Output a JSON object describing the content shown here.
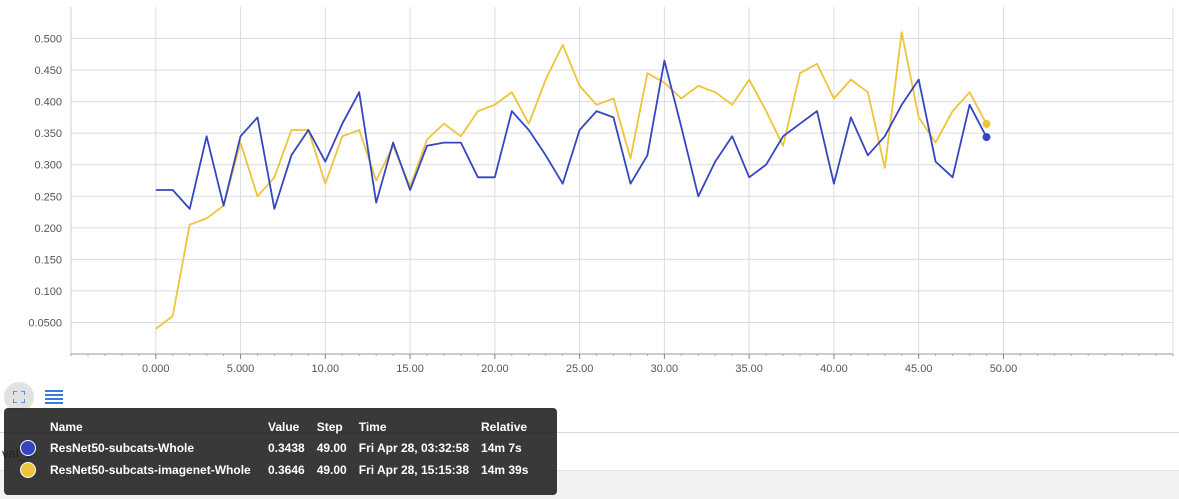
{
  "chart_data": {
    "type": "line",
    "xlim": [
      -5,
      60
    ],
    "ylim": [
      0,
      0.55
    ],
    "grid": true,
    "x_ticks": [
      0,
      5,
      10,
      15,
      20,
      25,
      30,
      35,
      40,
      45,
      50
    ],
    "x_tick_labels": [
      "0.000",
      "5.000",
      "10.00",
      "15.00",
      "20.00",
      "25.00",
      "30.00",
      "35.00",
      "40.00",
      "45.00",
      "50.00"
    ],
    "y_ticks": [
      0.05,
      0.1,
      0.15,
      0.2,
      0.25,
      0.3,
      0.35,
      0.4,
      0.45,
      0.5
    ],
    "y_tick_labels": [
      "0.0500",
      "0.100",
      "0.150",
      "0.200",
      "0.250",
      "0.300",
      "0.350",
      "0.400",
      "0.450",
      "0.500"
    ],
    "series": [
      {
        "name": "ResNet50-subcats-Whole",
        "color": "#3546c1",
        "x": [
          0,
          1,
          2,
          3,
          4,
          5,
          6,
          7,
          8,
          9,
          10,
          11,
          12,
          13,
          14,
          15,
          16,
          17,
          18,
          19,
          20,
          21,
          22,
          23,
          24,
          25,
          26,
          27,
          28,
          29,
          30,
          31,
          32,
          33,
          34,
          35,
          36,
          37,
          38,
          39,
          40,
          41,
          42,
          43,
          44,
          45,
          46,
          47,
          48,
          49
        ],
        "values": [
          0.26,
          0.26,
          0.23,
          0.345,
          0.235,
          0.345,
          0.375,
          0.23,
          0.315,
          0.355,
          0.305,
          0.365,
          0.415,
          0.24,
          0.335,
          0.26,
          0.33,
          0.335,
          0.335,
          0.28,
          0.28,
          0.385,
          0.355,
          0.315,
          0.27,
          0.355,
          0.385,
          0.375,
          0.27,
          0.315,
          0.465,
          0.36,
          0.25,
          0.305,
          0.345,
          0.28,
          0.3,
          0.345,
          0.365,
          0.385,
          0.27,
          0.375,
          0.315,
          0.345,
          0.395,
          0.435,
          0.305,
          0.28,
          0.395,
          0.3438
        ]
      },
      {
        "name": "ResNet50-subcats-imagenet-Whole",
        "color": "#edc43a",
        "x": [
          0,
          1,
          2,
          3,
          4,
          5,
          6,
          7,
          8,
          9,
          10,
          11,
          12,
          13,
          14,
          15,
          16,
          17,
          18,
          19,
          20,
          21,
          22,
          23,
          24,
          25,
          26,
          27,
          28,
          29,
          30,
          31,
          32,
          33,
          34,
          35,
          36,
          37,
          38,
          39,
          40,
          41,
          42,
          43,
          44,
          45,
          46,
          47,
          48,
          49
        ],
        "values": [
          0.04,
          0.06,
          0.205,
          0.215,
          0.235,
          0.335,
          0.25,
          0.28,
          0.355,
          0.355,
          0.27,
          0.345,
          0.355,
          0.275,
          0.33,
          0.265,
          0.34,
          0.365,
          0.345,
          0.385,
          0.395,
          0.415,
          0.365,
          0.435,
          0.49,
          0.425,
          0.395,
          0.405,
          0.31,
          0.445,
          0.43,
          0.405,
          0.425,
          0.415,
          0.395,
          0.435,
          0.385,
          0.33,
          0.445,
          0.46,
          0.405,
          0.435,
          0.415,
          0.295,
          0.51,
          0.375,
          0.335,
          0.385,
          0.415,
          0.3646
        ]
      }
    ]
  },
  "toolbar": {
    "fit_icon": "fit-domain-icon",
    "data_icon": "list-icon"
  },
  "underlay_text": "val_s",
  "tooltip": {
    "headers": {
      "name": "Name",
      "value": "Value",
      "step": "Step",
      "time": "Time",
      "relative": "Relative"
    },
    "rows": [
      {
        "color": "#3546c1",
        "name": "ResNet50-subcats-Whole",
        "value": "0.3438",
        "step": "49.00",
        "time": "Fri Apr 28, 03:32:58",
        "relative": "14m 7s"
      },
      {
        "color": "#edc43a",
        "name": "ResNet50-subcats-imagenet-Whole",
        "value": "0.3646",
        "step": "49.00",
        "time": "Fri Apr 28, 15:15:38",
        "relative": "14m 39s"
      }
    ]
  }
}
